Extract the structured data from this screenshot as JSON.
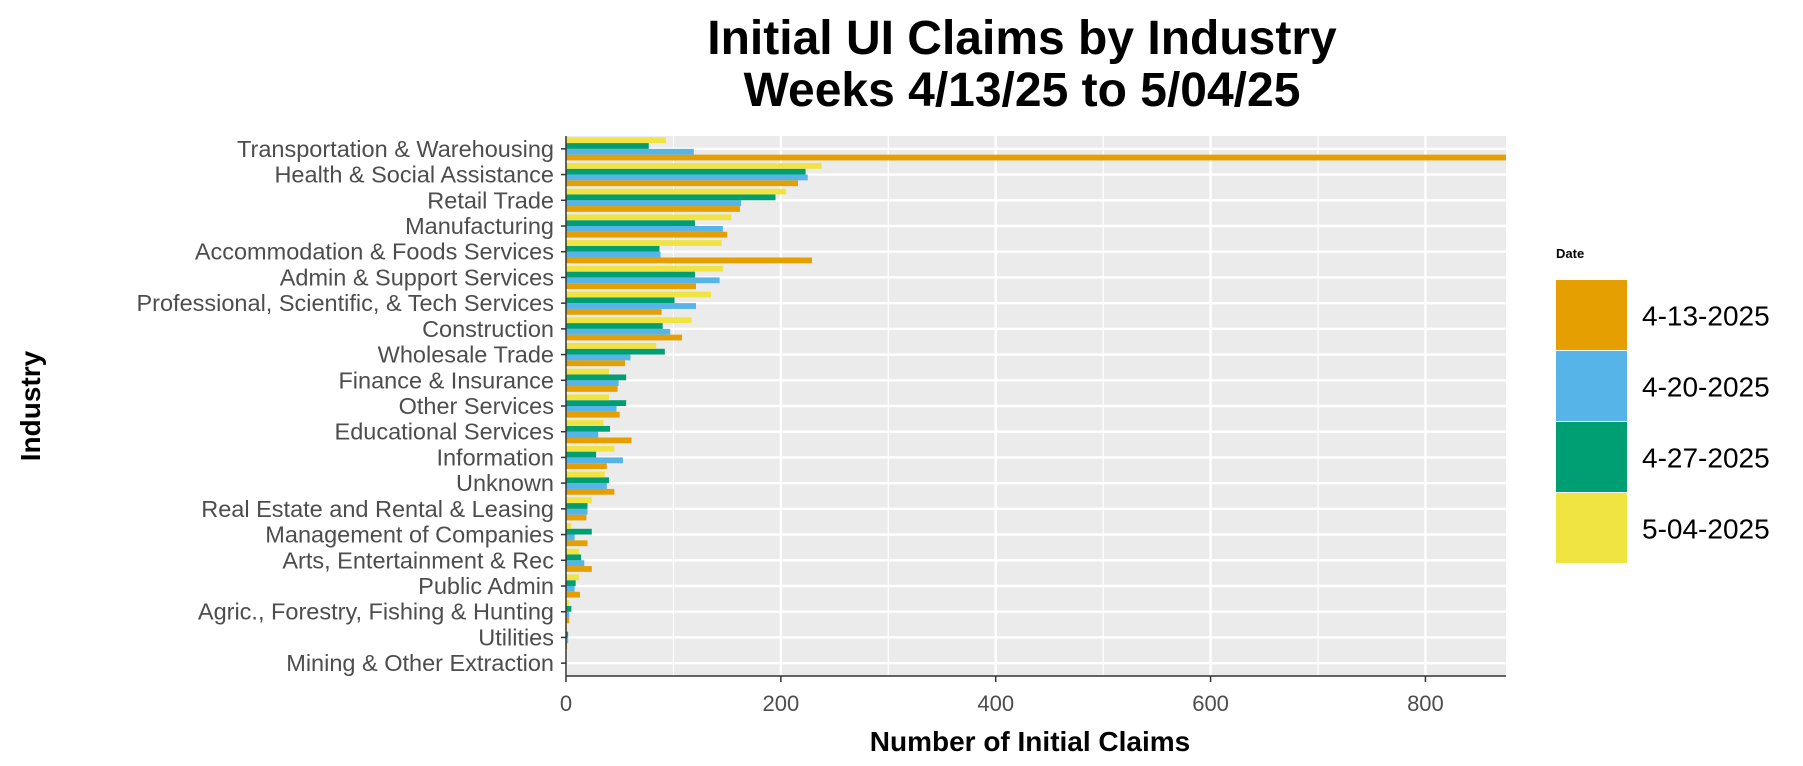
{
  "chart_data": {
    "type": "bar",
    "orientation": "horizontal",
    "title": "Initial UI Claims by Industry",
    "subtitle": "Weeks 4/13/25 to 5/04/25",
    "xlabel": "Number of Initial Claims",
    "ylabel": "Industry",
    "xlim": [
      0,
      875
    ],
    "x_ticks": [
      0,
      200,
      400,
      600,
      800
    ],
    "grid": true,
    "legend_title": "Date",
    "legend_position": "right",
    "categories": [
      "Transportation & Warehousing",
      "Health & Social Assistance",
      "Retail Trade",
      "Manufacturing",
      "Accommodation & Foods Services",
      "Admin & Support Services",
      "Professional, Scientific, & Tech Services",
      "Construction",
      "Wholesale Trade",
      "Finance & Insurance",
      "Other Services",
      "Educational Services",
      "Information",
      "Unknown",
      "Real Estate and Rental & Leasing",
      "Management of Companies",
      "Arts, Entertainment & Rec",
      "Public Admin",
      "Agric., Forestry, Fishing & Hunting",
      "Utilities",
      "Mining & Other Extraction"
    ],
    "series": [
      {
        "name": "4-13-2025",
        "color": "#E69F00",
        "values": [
          875,
          216,
          162,
          150,
          229,
          121,
          89,
          108,
          55,
          48,
          50,
          61,
          38,
          45,
          19,
          20,
          24,
          13,
          3,
          1,
          0
        ]
      },
      {
        "name": "4-20-2025",
        "color": "#56B4E9",
        "values": [
          119,
          225,
          163,
          146,
          88,
          143,
          121,
          97,
          60,
          49,
          47,
          30,
          53,
          38,
          20,
          8,
          17,
          8,
          3,
          2,
          0
        ]
      },
      {
        "name": "4-27-2025",
        "color": "#009E73",
        "values": [
          77,
          223,
          195,
          120,
          87,
          120,
          101,
          90,
          92,
          56,
          56,
          41,
          28,
          40,
          20,
          24,
          14,
          9,
          5,
          2,
          0
        ]
      },
      {
        "name": "5-04-2025",
        "color": "#F0E442",
        "values": [
          93,
          238,
          205,
          154,
          145,
          146,
          135,
          117,
          84,
          40,
          40,
          35,
          45,
          36,
          24,
          5,
          12,
          12,
          3,
          1,
          0
        ]
      }
    ]
  }
}
